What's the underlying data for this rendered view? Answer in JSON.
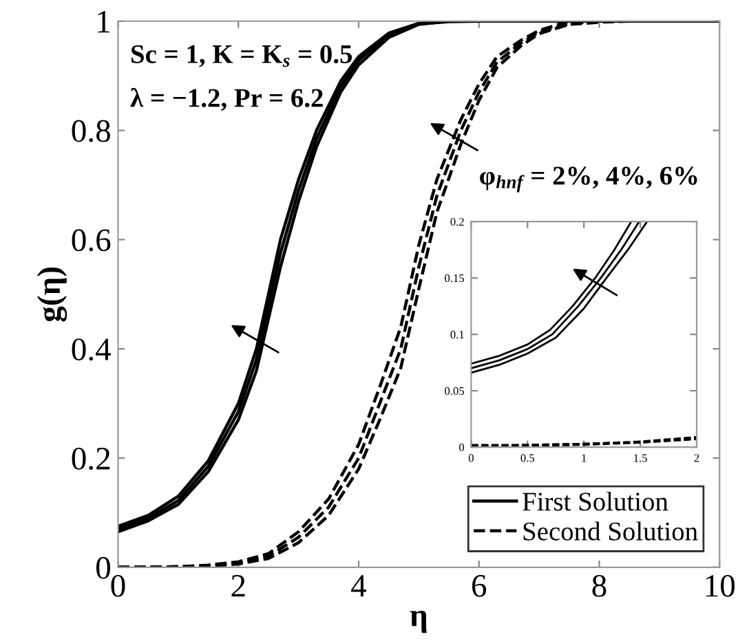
{
  "chart_data": [
    {
      "type": "line",
      "xlabel": "η",
      "ylabel": "g(η)",
      "xlim": [
        0,
        10
      ],
      "ylim": [
        0,
        1
      ],
      "xticks": [
        0,
        2,
        4,
        6,
        8,
        10
      ],
      "yticks": [
        0,
        0.2,
        0.4,
        0.6,
        0.8,
        1
      ],
      "legend": "bottom right",
      "annotations": [
        "Sc = 1, K = K$_{s}$ = 0.5",
        "λ = −1.2, Pr = 6.2",
        "φ$_{hnf}$ = 2%, 4%, 6%"
      ],
      "x": [
        0,
        0.5,
        1,
        1.5,
        2,
        2.3,
        2.7,
        3,
        3.3,
        3.7,
        4,
        4.5,
        5,
        5.5,
        6,
        8,
        10
      ],
      "series": [
        {
          "name": "First Solution",
          "color": "#000000",
          "line_style": "solid",
          "x": [
            0,
            0.5,
            1,
            1.5,
            2,
            2.3,
            2.7,
            3,
            3.3,
            3.7,
            4,
            4.5,
            5,
            5.5
          ],
          "values": [
            0.075,
            0.095,
            0.13,
            0.195,
            0.3,
            0.4,
            0.6,
            0.71,
            0.8,
            0.89,
            0.935,
            0.978,
            0.996,
            1
          ]
        },
        {
          "color": "#000000",
          "line_style": "solid",
          "x": [
            0,
            0.5,
            1,
            1.5,
            2,
            2.3,
            2.7,
            3,
            3.3,
            3.7,
            4,
            4.5,
            5,
            5.5,
            6
          ],
          "values": [
            0.07,
            0.09,
            0.122,
            0.185,
            0.285,
            0.38,
            0.575,
            0.69,
            0.785,
            0.88,
            0.928,
            0.975,
            0.995,
            0.999,
            1
          ]
        },
        {
          "color": "#000000",
          "line_style": "solid",
          "values": [
            0.065,
            0.085,
            0.115,
            0.175,
            0.27,
            0.36,
            0.55,
            0.67,
            0.77,
            0.87,
            0.92,
            0.97,
            0.994,
            1,
            1,
            1,
            1
          ]
        },
        {
          "name": "Second Solution",
          "color": "#000000",
          "line_style": "dashed",
          "x": [
            0,
            1,
            1.5,
            2,
            2.5,
            3,
            3.5,
            4,
            4.35,
            4.7,
            5,
            5.3,
            5.7,
            6,
            6.3,
            6.7,
            7,
            7.5
          ],
          "values": [
            0,
            0.001,
            0.004,
            0.01,
            0.025,
            0.065,
            0.125,
            0.225,
            0.33,
            0.44,
            0.59,
            0.71,
            0.82,
            0.885,
            0.935,
            0.965,
            0.983,
            1
          ]
        },
        {
          "color": "#000000",
          "line_style": "dashed",
          "x": [
            0,
            1,
            1.5,
            2,
            2.5,
            3,
            3.5,
            4,
            4.35,
            4.7,
            5,
            5.3,
            5.7,
            6,
            6.3,
            6.7,
            7,
            7.5,
            8
          ],
          "values": [
            0,
            0.001,
            0.003,
            0.008,
            0.02,
            0.055,
            0.11,
            0.2,
            0.3,
            0.4,
            0.55,
            0.68,
            0.8,
            0.87,
            0.925,
            0.96,
            0.98,
            0.995,
            1
          ]
        },
        {
          "color": "#000000",
          "line_style": "dashed",
          "x": [
            0,
            1,
            1.5,
            2,
            2.5,
            3,
            3.5,
            4,
            4.35,
            4.7,
            5,
            5.3,
            5.7,
            6,
            6.3,
            6.7,
            7,
            7.5,
            8,
            8.5
          ],
          "values": [
            0,
            0.001,
            0.002,
            0.006,
            0.016,
            0.045,
            0.095,
            0.18,
            0.27,
            0.365,
            0.51,
            0.65,
            0.775,
            0.855,
            0.915,
            0.955,
            0.977,
            0.994,
            0.998,
            1
          ]
        }
      ]
    },
    {
      "type": "line",
      "xlim": [
        0,
        2
      ],
      "ylim": [
        0,
        0.2
      ],
      "xticks": [
        0,
        0.5,
        1,
        1.5,
        2
      ],
      "yticks": [
        0,
        0.05,
        0.1,
        0.15,
        0.2
      ],
      "series": [
        {
          "color": "#000000",
          "line_style": "solid",
          "x": [
            0,
            0.25,
            0.5,
            0.7,
            0.9,
            1.1,
            1.27,
            1.42
          ],
          "values": [
            0.074,
            0.081,
            0.091,
            0.104,
            0.125,
            0.15,
            0.175,
            0.2
          ]
        },
        {
          "color": "#000000",
          "line_style": "solid",
          "x": [
            0,
            0.25,
            0.5,
            0.72,
            0.95,
            1.15,
            1.33,
            1.49
          ],
          "values": [
            0.07,
            0.077,
            0.087,
            0.1,
            0.125,
            0.15,
            0.175,
            0.2
          ]
        },
        {
          "color": "#000000",
          "line_style": "solid",
          "x": [
            0,
            0.25,
            0.5,
            0.75,
            1,
            1.2,
            1.39,
            1.56
          ],
          "values": [
            0.066,
            0.073,
            0.083,
            0.097,
            0.123,
            0.15,
            0.175,
            0.2
          ]
        },
        {
          "color": "#000000",
          "line_style": "dashed",
          "x": [
            0,
            0.5,
            1,
            1.5,
            2
          ],
          "values": [
            0.002,
            0.002,
            0.003,
            0.005,
            0.009
          ]
        },
        {
          "color": "#000000",
          "line_style": "dashed",
          "x": [
            0,
            0.5,
            1,
            1.5,
            2
          ],
          "values": [
            0.001,
            0.002,
            0.003,
            0.004,
            0.008
          ]
        },
        {
          "color": "#000000",
          "line_style": "dashed",
          "x": [
            0,
            0.5,
            1,
            1.5,
            2
          ],
          "values": [
            0.001,
            0.001,
            0.002,
            0.004,
            0.007
          ]
        }
      ]
    }
  ]
}
